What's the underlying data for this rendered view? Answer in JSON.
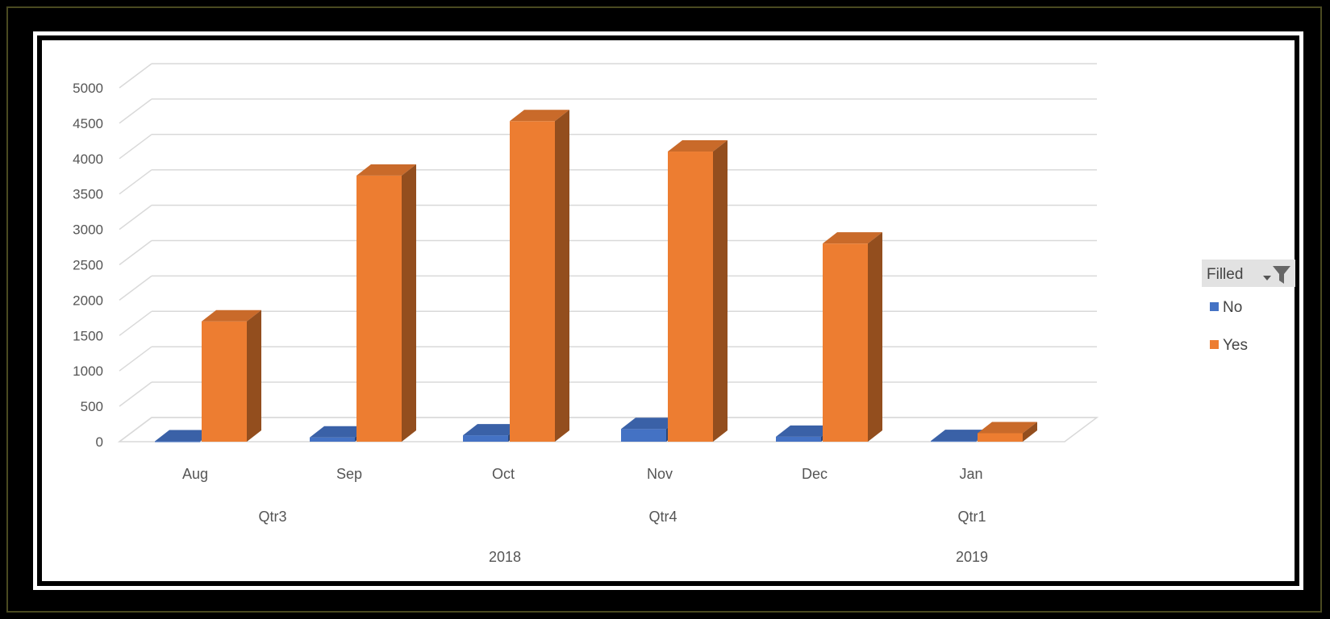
{
  "chart_data": {
    "type": "bar",
    "style": "3d-column",
    "categories": [
      "Aug",
      "Sep",
      "Oct",
      "Nov",
      "Dec",
      "Jan"
    ],
    "quarters": [
      {
        "label": "Qtr3",
        "span": [
          0,
          1
        ]
      },
      {
        "label": "Qtr4",
        "span": [
          2,
          4
        ]
      },
      {
        "label": "Qtr1",
        "span": [
          5,
          5
        ]
      }
    ],
    "years": [
      {
        "label": "2018",
        "span": [
          0,
          4
        ]
      },
      {
        "label": "2019",
        "span": [
          5,
          5
        ]
      }
    ],
    "series": [
      {
        "name": "No",
        "color": "#4472c4",
        "values": [
          5,
          60,
          90,
          180,
          70,
          10
        ]
      },
      {
        "name": "Yes",
        "color": "#ed7d31",
        "values": [
          1700,
          3760,
          4530,
          4100,
          2800,
          120
        ]
      }
    ],
    "yticks": [
      0,
      500,
      1000,
      1500,
      2000,
      2500,
      3000,
      3500,
      4000,
      4500,
      5000
    ],
    "ylim": [
      0,
      5000
    ],
    "grid": true,
    "legend": {
      "title": "Filled",
      "placement": "right"
    },
    "xlabel": "",
    "ylabel": "",
    "title": ""
  }
}
